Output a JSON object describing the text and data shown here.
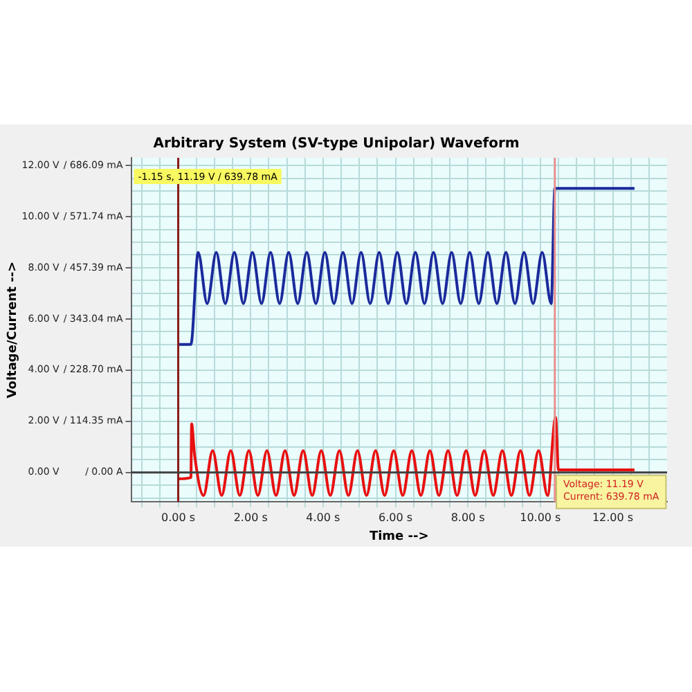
{
  "chart_data": {
    "type": "line",
    "title": "Arbitrary System (SV-type Unipolar) Waveform",
    "xlabel": "Time -->",
    "ylabel": "Voltage/Current -->",
    "series": [
      {
        "color": "#1a2a9c",
        "x": [
          0,
          0.35,
          0.55,
          0.8,
          1.05,
          1.3,
          1.55,
          1.8,
          2.05,
          2.3,
          2.55,
          2.8,
          3.05,
          3.3,
          3.55,
          3.8,
          4.05,
          4.3,
          4.55,
          4.8,
          5.05,
          5.3,
          5.55,
          5.8,
          6.05,
          6.3,
          6.55,
          6.8,
          7.05,
          7.3,
          7.55,
          7.8,
          8.05,
          8.3,
          8.55,
          8.8,
          9.05,
          9.3,
          9.55,
          9.8,
          10.05,
          10.3,
          10.4,
          12.6
        ],
        "values": [
          5,
          5,
          8.6,
          6.6,
          8.6,
          6.6,
          8.6,
          6.6,
          8.6,
          6.6,
          8.6,
          6.6,
          8.6,
          6.6,
          8.6,
          6.6,
          8.6,
          6.6,
          8.6,
          6.6,
          8.6,
          6.6,
          8.6,
          6.6,
          8.6,
          6.6,
          8.6,
          6.6,
          8.6,
          6.6,
          8.6,
          6.6,
          8.6,
          6.6,
          8.6,
          6.6,
          8.6,
          6.6,
          8.6,
          6.6,
          8.6,
          6.6,
          11.1,
          11.1
        ]
      },
      {
        "color": "#e81010",
        "x": [
          0,
          0.35,
          0.37,
          0.45,
          0.7,
          0.95,
          1.2,
          1.45,
          1.7,
          1.95,
          2.2,
          2.45,
          2.7,
          2.95,
          3.2,
          3.45,
          3.7,
          3.95,
          4.2,
          4.45,
          4.7,
          4.95,
          5.2,
          5.45,
          5.7,
          5.95,
          6.2,
          6.45,
          6.7,
          6.95,
          7.2,
          7.45,
          7.7,
          7.95,
          8.2,
          8.45,
          8.7,
          8.95,
          9.2,
          9.45,
          9.7,
          9.95,
          10.2,
          10.42,
          10.5,
          12.6
        ],
        "values": [
          -0.25,
          -0.2,
          1.9,
          0.7,
          -0.9,
          0.85,
          -0.9,
          0.85,
          -0.9,
          0.85,
          -0.9,
          0.85,
          -0.9,
          0.85,
          -0.9,
          0.85,
          -0.9,
          0.85,
          -0.9,
          0.85,
          -0.9,
          0.85,
          -0.9,
          0.85,
          -0.9,
          0.85,
          -0.9,
          0.85,
          -0.9,
          0.85,
          -0.9,
          0.85,
          -0.9,
          0.85,
          -0.9,
          0.85,
          -0.9,
          0.85,
          -0.9,
          0.85,
          -0.9,
          0.85,
          -0.9,
          2.15,
          0.1,
          0.1
        ]
      }
    ],
    "xlim": [
      -1.3,
      13.5
    ],
    "ylim": [
      -1.15,
      12.3
    ],
    "xticks": [
      {
        "value": -1,
        "label": null
      },
      {
        "value": -0.5,
        "label": null
      },
      {
        "value": 0,
        "label": "0.00 s"
      },
      {
        "value": 0.5,
        "label": null
      },
      {
        "value": 1,
        "label": null
      },
      {
        "value": 1.5,
        "label": null
      },
      {
        "value": 2,
        "label": "2.00 s"
      },
      {
        "value": 2.5,
        "label": null
      },
      {
        "value": 3,
        "label": null
      },
      {
        "value": 3.5,
        "label": null
      },
      {
        "value": 4,
        "label": "4.00 s"
      },
      {
        "value": 4.5,
        "label": null
      },
      {
        "value": 5,
        "label": null
      },
      {
        "value": 5.5,
        "label": null
      },
      {
        "value": 6,
        "label": "6.00 s"
      },
      {
        "value": 6.5,
        "label": null
      },
      {
        "value": 7,
        "label": null
      },
      {
        "value": 7.5,
        "label": null
      },
      {
        "value": 8,
        "label": "8.00 s"
      },
      {
        "value": 8.5,
        "label": null
      },
      {
        "value": 9,
        "label": null
      },
      {
        "value": 9.5,
        "label": null
      },
      {
        "value": 10,
        "label": "10.00 s"
      },
      {
        "value": 10.5,
        "label": null
      },
      {
        "value": 11,
        "label": null
      },
      {
        "value": 11.5,
        "label": null
      },
      {
        "value": 12,
        "label": "12.00 s"
      },
      {
        "value": 12.5,
        "label": null
      },
      {
        "value": 13,
        "label": null
      }
    ],
    "yticks": [
      {
        "value": -1,
        "label": null
      },
      {
        "value": -0.5,
        "label": null
      },
      {
        "value": 0,
        "label": "0.00 V"
      },
      {
        "value": 0.5,
        "label": null
      },
      {
        "value": 1,
        "label": null
      },
      {
        "value": 1.5,
        "label": null
      },
      {
        "value": 2,
        "label": "2.00 V"
      },
      {
        "value": 2.5,
        "label": null
      },
      {
        "value": 3,
        "label": null
      },
      {
        "value": 3.5,
        "label": null
      },
      {
        "value": 4,
        "label": "4.00 V"
      },
      {
        "value": 4.5,
        "label": null
      },
      {
        "value": 5,
        "label": null
      },
      {
        "value": 5.5,
        "label": null
      },
      {
        "value": 6,
        "label": "6.00 V"
      },
      {
        "value": 6.5,
        "label": null
      },
      {
        "value": 7,
        "label": null
      },
      {
        "value": 7.5,
        "label": null
      },
      {
        "value": 8,
        "label": "8.00 V"
      },
      {
        "value": 8.5,
        "label": null
      },
      {
        "value": 9,
        "label": null
      },
      {
        "value": 9.5,
        "label": null
      },
      {
        "value": 10,
        "label": "10.00 V"
      },
      {
        "value": 10.5,
        "label": null
      },
      {
        "value": 11,
        "label": null
      },
      {
        "value": 11.5,
        "label": null
      },
      {
        "value": 12,
        "label": "12.00 V"
      }
    ],
    "y2lim": [
      -65.75,
      703.24
    ],
    "y2ticks": [
      {
        "value": 0,
        "label": "/ 0.00 A"
      },
      {
        "value": 114.35,
        "label": "/ 114.35 mA"
      },
      {
        "value": 228.7,
        "label": "/ 228.70 mA"
      },
      {
        "value": 343.04,
        "label": "/ 343.04 mA"
      },
      {
        "value": 457.39,
        "label": "/ 457.39 mA"
      },
      {
        "value": 571.74,
        "label": "/ 571.74 mA"
      },
      {
        "value": 686.09,
        "label": "/ 686.09 mA"
      }
    ],
    "ref_lines": [
      {
        "axis": "x",
        "value": 0,
        "color": "#8b1a1a"
      },
      {
        "axis": "x",
        "value": 10.4,
        "color": "#e89090"
      },
      {
        "axis": "y",
        "value": 0,
        "color": "#404040"
      }
    ],
    "annotations": [
      "-1.15 s, 11.19 V / 639.78 mA",
      "Voltage: 11.19 V",
      "Current: 639.78 mA"
    ],
    "grid": true,
    "legend": false,
    "marker": "none",
    "line_style": "solid"
  }
}
